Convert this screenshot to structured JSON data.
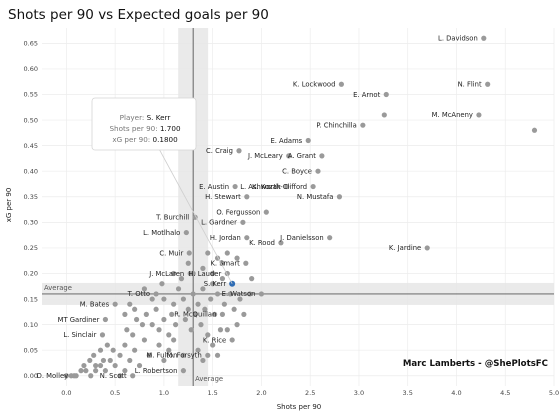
{
  "chart_data": {
    "type": "scatter",
    "title": "Shots per 90 vs Expected goals per 90",
    "xlabel": "Shots per 90",
    "ylabel": "xG per 90",
    "xlim": [
      -0.25,
      5.0
    ],
    "ylim": [
      -0.02,
      0.68
    ],
    "xticks": [
      "0.0",
      "0.5",
      "1.0",
      "1.5",
      "2.0",
      "2.5",
      "3.0",
      "3.5",
      "4.0",
      "4.5",
      "5.0"
    ],
    "yticks": [
      "0.00",
      "0.05",
      "0.10",
      "0.15",
      "0.20",
      "0.25",
      "0.30",
      "0.35",
      "0.40",
      "0.45",
      "0.50",
      "0.55",
      "0.60",
      "0.65"
    ],
    "average_x": 1.3,
    "average_y": 0.16,
    "average_label": "Average",
    "credit": "Marc Lamberts - @ShePlotsFC",
    "tooltip": {
      "player_label": "Player:",
      "player": "S. Kerr",
      "shots_label": "Shots per 90:",
      "shots": "1.700",
      "xg_label": "xG per 90:",
      "xg": "0.1800",
      "x": 1.7,
      "y": 0.18
    },
    "point_color": "#9a9a9a",
    "highlight_color": "#2f6db5",
    "labeled_points": [
      {
        "name": "L. Davidson",
        "x": 4.28,
        "y": 0.66
      },
      {
        "name": "N. Flint",
        "x": 4.32,
        "y": 0.57
      },
      {
        "name": "M. McAneny",
        "x": 4.23,
        "y": 0.51
      },
      {
        "name": "K. Lockwood",
        "x": 2.82,
        "y": 0.57
      },
      {
        "name": "E. Arnot",
        "x": 3.28,
        "y": 0.55
      },
      {
        "name": "P. Chinchilla",
        "x": 3.04,
        "y": 0.49
      },
      {
        "name": "E. Adams",
        "x": 2.48,
        "y": 0.46
      },
      {
        "name": "J. McLeary",
        "x": 2.28,
        "y": 0.43
      },
      {
        "name": "A. Grant",
        "x": 2.62,
        "y": 0.43
      },
      {
        "name": "C. Craig",
        "x": 1.77,
        "y": 0.44
      },
      {
        "name": "C. Boyce",
        "x": 2.58,
        "y": 0.4
      },
      {
        "name": "E. Austin",
        "x": 1.73,
        "y": 0.37
      },
      {
        "name": "K. Kozak",
        "x": 2.26,
        "y": 0.37
      },
      {
        "name": "L. Ashworth-Clifford",
        "x": 2.53,
        "y": 0.37
      },
      {
        "name": "H. Stewart",
        "x": 1.85,
        "y": 0.35
      },
      {
        "name": "N. Mustafa",
        "x": 2.8,
        "y": 0.35
      },
      {
        "name": "O. Fergusson",
        "x": 2.05,
        "y": 0.32
      },
      {
        "name": "T. Burchill",
        "x": 1.32,
        "y": 0.31
      },
      {
        "name": "L. Gardner",
        "x": 1.81,
        "y": 0.3
      },
      {
        "name": "L. Motlhalo",
        "x": 1.23,
        "y": 0.28
      },
      {
        "name": "H. Jordan",
        "x": 1.85,
        "y": 0.27
      },
      {
        "name": "J. Danielsson",
        "x": 2.7,
        "y": 0.27
      },
      {
        "name": "K. Jardine",
        "x": 3.7,
        "y": 0.25
      },
      {
        "name": "K. Rood",
        "x": 2.2,
        "y": 0.26
      },
      {
        "name": "C. Muir",
        "x": 1.26,
        "y": 0.24
      },
      {
        "name": "K. Smart",
        "x": 1.84,
        "y": 0.22
      },
      {
        "name": "J. McLaren",
        "x": 1.27,
        "y": 0.2
      },
      {
        "name": "H. Lauder",
        "x": 1.65,
        "y": 0.2
      },
      {
        "name": "S. Kerr",
        "x": 1.7,
        "y": 0.18
      },
      {
        "name": "E. Watson",
        "x": 2.0,
        "y": 0.16
      },
      {
        "name": "T. Otto",
        "x": 0.92,
        "y": 0.16
      },
      {
        "name": "M. Bates",
        "x": 0.5,
        "y": 0.14
      },
      {
        "name": "R. McQuillan",
        "x": 1.6,
        "y": 0.12
      },
      {
        "name": "MT Gardiner",
        "x": 0.4,
        "y": 0.11
      },
      {
        "name": "L. Sinclair",
        "x": 0.37,
        "y": 0.08
      },
      {
        "name": "K. Rice",
        "x": 1.7,
        "y": 0.07
      },
      {
        "name": "M. Fulton",
        "x": 1.2,
        "y": 0.04
      },
      {
        "name": "M. Forsyth",
        "x": 1.45,
        "y": 0.04
      },
      {
        "name": "L. Robertson",
        "x": 1.2,
        "y": 0.01
      },
      {
        "name": "D. Molley",
        "x": 0.08,
        "y": 0.0
      },
      {
        "name": "N. Scott",
        "x": 0.68,
        "y": 0.0
      }
    ],
    "other_points": [
      [
        4.8,
        0.48
      ],
      [
        3.26,
        0.51
      ],
      [
        0.0,
        0.0
      ],
      [
        0.05,
        0.0
      ],
      [
        0.1,
        0.0
      ],
      [
        0.15,
        0.01
      ],
      [
        0.2,
        0.01
      ],
      [
        0.25,
        0.0
      ],
      [
        0.3,
        0.01
      ],
      [
        0.35,
        0.02
      ],
      [
        0.18,
        0.02
      ],
      [
        0.24,
        0.03
      ],
      [
        0.3,
        0.02
      ],
      [
        0.4,
        0.01
      ],
      [
        0.45,
        0.03
      ],
      [
        0.5,
        0.02
      ],
      [
        0.55,
        0.0
      ],
      [
        0.6,
        0.01
      ],
      [
        0.28,
        0.04
      ],
      [
        0.35,
        0.05
      ],
      [
        0.38,
        0.03
      ],
      [
        0.42,
        0.06
      ],
      [
        0.48,
        0.05
      ],
      [
        0.55,
        0.04
      ],
      [
        0.6,
        0.06
      ],
      [
        0.65,
        0.03
      ],
      [
        0.7,
        0.05
      ],
      [
        0.75,
        0.02
      ],
      [
        0.8,
        0.07
      ],
      [
        0.85,
        0.04
      ],
      [
        0.62,
        0.09
      ],
      [
        0.68,
        0.08
      ],
      [
        0.72,
        0.11
      ],
      [
        0.78,
        0.1
      ],
      [
        0.6,
        0.12
      ],
      [
        0.65,
        0.14
      ],
      [
        0.7,
        0.13
      ],
      [
        0.82,
        0.12
      ],
      [
        0.88,
        0.1
      ],
      [
        0.92,
        0.13
      ],
      [
        0.95,
        0.09
      ],
      [
        1.0,
        0.11
      ],
      [
        1.05,
        0.08
      ],
      [
        1.08,
        0.12
      ],
      [
        1.1,
        0.14
      ],
      [
        1.12,
        0.1
      ],
      [
        0.95,
        0.06
      ],
      [
        1.0,
        0.03
      ],
      [
        1.05,
        0.05
      ],
      [
        1.1,
        0.07
      ],
      [
        0.88,
        0.15
      ],
      [
        1.0,
        0.15
      ],
      [
        1.15,
        0.17
      ],
      [
        1.2,
        0.15
      ],
      [
        1.25,
        0.13
      ],
      [
        1.3,
        0.16
      ],
      [
        1.35,
        0.14
      ],
      [
        1.4,
        0.17
      ],
      [
        1.22,
        0.11
      ],
      [
        1.28,
        0.09
      ],
      [
        1.32,
        0.12
      ],
      [
        1.38,
        0.1
      ],
      [
        1.45,
        0.08
      ],
      [
        1.42,
        0.13
      ],
      [
        1.48,
        0.15
      ],
      [
        1.52,
        0.12
      ],
      [
        1.55,
        0.16
      ],
      [
        1.58,
        0.09
      ],
      [
        1.62,
        0.14
      ],
      [
        1.68,
        0.16
      ],
      [
        1.72,
        0.13
      ],
      [
        1.78,
        0.15
      ],
      [
        1.82,
        0.12
      ],
      [
        1.88,
        0.16
      ],
      [
        1.35,
        0.05
      ],
      [
        1.4,
        0.03
      ],
      [
        1.5,
        0.06
      ],
      [
        1.55,
        0.04
      ],
      [
        1.65,
        0.09
      ],
      [
        1.75,
        0.1
      ],
      [
        1.3,
        0.2
      ],
      [
        1.4,
        0.21
      ],
      [
        1.5,
        0.2
      ],
      [
        1.55,
        0.23
      ],
      [
        1.6,
        0.22
      ],
      [
        1.45,
        0.24
      ],
      [
        1.65,
        0.24
      ],
      [
        1.75,
        0.23
      ],
      [
        1.25,
        0.22
      ],
      [
        1.5,
        0.18
      ],
      [
        1.18,
        0.19
      ],
      [
        1.6,
        0.19
      ],
      [
        0.98,
        0.18
      ],
      [
        1.9,
        0.19
      ],
      [
        0.8,
        0.17
      ],
      [
        1.1,
        0.2
      ]
    ]
  }
}
